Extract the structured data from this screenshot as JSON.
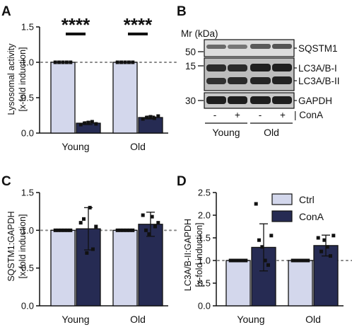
{
  "colors": {
    "ctrl": "#d3d7ec",
    "cona": "#262b53",
    "edge": "#111111",
    "dotline": "#888888"
  },
  "chart_data": [
    {
      "panel": "A",
      "type": "bar",
      "categories": [
        "Young",
        "Old"
      ],
      "series": [
        {
          "values": [
            1.0,
            1.0
          ],
          "points": [
            [
              1,
              1,
              1,
              1,
              1
            ],
            [
              1,
              1,
              1,
              1,
              1
            ]
          ]
        },
        {
          "values": [
            0.14,
            0.22
          ],
          "points": [
            [
              0.12,
              0.14,
              0.15,
              0.16,
              0.13
            ],
            [
              0.2,
              0.22,
              0.23,
              0.21,
              0.24
            ]
          ]
        }
      ],
      "ylabel": "Lysosomal activity",
      "ylabel2": "[x-fold induction]",
      "ylim": [
        0,
        1.5
      ],
      "yticks": [
        "0.0",
        "0.5",
        "1.0",
        "1.5"
      ],
      "significance": [
        "****",
        "****"
      ],
      "reference_line": 1.0
    },
    {
      "panel": "C",
      "type": "bar",
      "categories": [
        "Young",
        "Old"
      ],
      "series": [
        {
          "values": [
            1.0,
            1.0
          ],
          "points": [
            [
              1,
              1,
              1,
              1,
              1,
              1
            ],
            [
              1,
              1,
              1,
              1,
              1,
              1
            ]
          ]
        },
        {
          "values": [
            1.02,
            1.08
          ],
          "points": [
            [
              1.1,
              1.15,
              0.7,
              1.3,
              0.75,
              1.05
            ],
            [
              1.2,
              1.0,
              0.95,
              1.18,
              1.05,
              1.1
            ]
          ]
        }
      ],
      "ylabel": "SQSTM1:GAPDH",
      "ylabel2": "[x-fold induction]",
      "ylim": [
        0,
        1.5
      ],
      "yticks": [
        "0.0",
        "0.5",
        "1.0",
        "1.5"
      ],
      "reference_line": 1.0
    },
    {
      "panel": "D",
      "type": "bar",
      "categories": [
        "Young",
        "Old"
      ],
      "series": [
        {
          "name": "Ctrl",
          "values": [
            1.0,
            1.0
          ],
          "points": [
            [
              1,
              1,
              1,
              1,
              1,
              1
            ],
            [
              1,
              1,
              1,
              1,
              1,
              1
            ]
          ]
        },
        {
          "name": "ConA",
          "values": [
            1.29,
            1.33
          ],
          "points": [
            [
              2.25,
              1.45,
              1.3,
              1.0,
              0.9,
              1.55
            ],
            [
              1.5,
              1.2,
              1.45,
              1.3,
              1.1,
              1.55
            ]
          ]
        }
      ],
      "ylabel": "LC3A/B-II:GAPDH",
      "ylabel2": "[x-fold induction]",
      "ylim": [
        0,
        2.5
      ],
      "yticks": [
        "0.0",
        "0.5",
        "1.0",
        "1.5",
        "2.0",
        "2.5"
      ],
      "reference_line": 1.0
    }
  ],
  "errors": {
    "A": [
      [
        0,
        0
      ],
      [
        0.02,
        0.02
      ]
    ],
    "C": [
      [
        0,
        0
      ],
      [
        0.28,
        0.16
      ]
    ],
    "D": [
      [
        0,
        0
      ],
      [
        0.52,
        0.23
      ]
    ]
  },
  "panel_labels": {
    "A": "A",
    "B": "B",
    "C": "C",
    "D": "D"
  },
  "blot": {
    "mr_label": "Mr (kDa)",
    "markers": [
      "50",
      "15",
      "30"
    ],
    "bands": [
      "SQSTM1",
      "LC3A/B-I",
      "LC3A/B-II",
      "GAPDH"
    ],
    "lanes": [
      "-",
      "+",
      "-",
      "+"
    ],
    "treatment": "| ConA",
    "groups": [
      "Young",
      "Old"
    ]
  }
}
